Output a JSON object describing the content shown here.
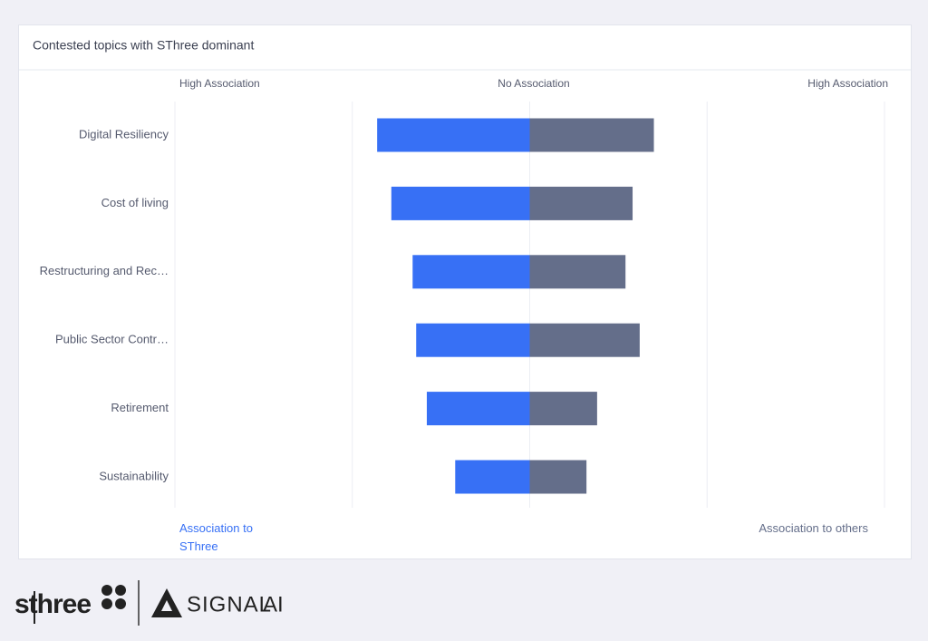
{
  "chart_data": {
    "type": "diverging-bar",
    "title": "Contested topics with SThree dominant",
    "scale_labels": {
      "left": "High Association",
      "center": "No Association",
      "right": "High Association"
    },
    "categories": [
      "Digital Resiliency",
      "Cost of living",
      "Restructuring and Rec…",
      "Public Sector Contr…",
      "Retirement",
      "Sustainability"
    ],
    "series": [
      {
        "name": "Association to SThree",
        "color": "#3770f5",
        "values": [
          -0.43,
          -0.39,
          -0.33,
          -0.32,
          -0.29,
          -0.21
        ]
      },
      {
        "name": "Association to others",
        "color": "#646e8a",
        "values": [
          0.35,
          0.29,
          0.27,
          0.31,
          0.19,
          0.16
        ]
      }
    ],
    "xlim": [
      -1,
      1
    ],
    "xticks": [
      -1,
      -0.5,
      0,
      0.5,
      1
    ],
    "grid": true
  },
  "footer": {
    "brand": "sthree",
    "partner": "SIGNAL",
    "partner_suffix": "AI"
  }
}
